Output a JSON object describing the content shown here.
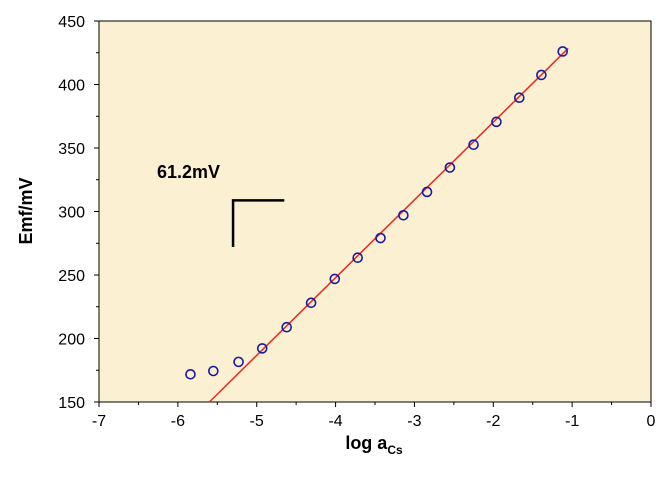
{
  "chart_data": {
    "type": "scatter",
    "xlabel": "log a",
    "xlabel_subscript": "Cs",
    "ylabel": "Emf/mV",
    "xlim": [
      -7,
      0
    ],
    "ylim": [
      150,
      450
    ],
    "xticks": [
      -7,
      -6,
      -5,
      -4,
      -3,
      -2,
      -1,
      0
    ],
    "yticks": [
      150,
      200,
      250,
      300,
      350,
      400,
      450
    ],
    "grid": false,
    "legend": "none",
    "background_color": "#fcf0d2",
    "annotation": {
      "text": "61.2mV"
    },
    "series": [
      {
        "marker": "open-circle",
        "color": "#1a1aa6",
        "x": [
          -5.84,
          -5.55,
          -5.23,
          -4.93,
          -4.62,
          -4.31,
          -4.01,
          -3.72,
          -3.43,
          -3.14,
          -2.84,
          -2.55,
          -2.25,
          -1.96,
          -1.67,
          -1.39,
          -1.12
        ],
        "y": [
          171.8,
          174.4,
          181.6,
          192.2,
          208.9,
          228.1,
          246.9,
          263.6,
          279.1,
          297.0,
          315.4,
          334.6,
          352.6,
          370.6,
          389.6,
          407.5,
          426.0
        ]
      }
    ],
    "fit_line": {
      "color": "#e8291c",
      "x": [
        -5.6,
        -1.05
      ],
      "y": [
        150,
        428.5
      ],
      "slope": 61.2
    },
    "slope_marker": {
      "dx": 1,
      "dy": 61.2
    }
  }
}
